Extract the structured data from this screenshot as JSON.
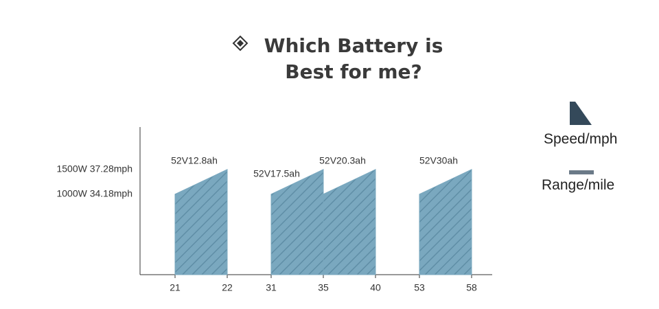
{
  "chart_data": {
    "type": "area",
    "title": "Which Battery is Best for me?",
    "series": [
      {
        "name": "52V12.8ah",
        "x": [
          21,
          22
        ],
        "values": [
          34.18,
          37.28
        ]
      },
      {
        "name": "52V17.5ah",
        "x": [
          31,
          35
        ],
        "values": [
          34.18,
          37.28
        ]
      },
      {
        "name": "52V20.3ah",
        "x": [
          35,
          40
        ],
        "values": [
          34.18,
          37.28
        ]
      },
      {
        "name": "52V30ah",
        "x": [
          53,
          58
        ],
        "values": [
          34.18,
          37.28
        ]
      }
    ],
    "color": "#7aa8bf",
    "xticks": [
      21,
      22,
      31,
      35,
      40,
      53,
      58
    ],
    "ylim": [
      24.1,
      42.6
    ],
    "yticks": [
      {
        "value": 37.28,
        "label": "1500W 37.28mph"
      },
      {
        "value": 34.18,
        "label": "1000W 34.18mph"
      }
    ],
    "legend": [
      {
        "label": "Speed/mph",
        "color": "#34495a"
      },
      {
        "label": "Range/mile",
        "color": "#6b7a88"
      }
    ]
  }
}
